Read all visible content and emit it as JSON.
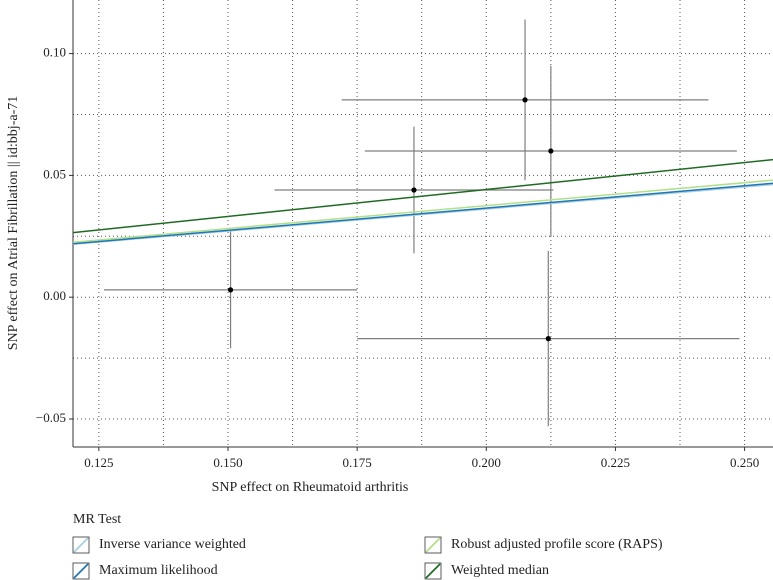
{
  "chart_data": {
    "type": "scatter",
    "x_label": "SNP effect on Rheumatoid arthritis",
    "y_label": "SNP effect on Atrial Fibrillation || id:bbj-a-71",
    "x": [
      0.1505,
      0.186,
      0.2075,
      0.2125,
      0.212
    ],
    "y": [
      0.003,
      0.044,
      0.081,
      0.06,
      -0.017
    ],
    "x_err": [
      0.0245,
      0.027,
      0.0355,
      0.036,
      0.037
    ],
    "y_err": [
      0.024,
      0.026,
      0.033,
      0.035,
      0.036
    ],
    "point_color": "#000000",
    "error_color": "#7f7f7f",
    "xlim": [
      0.12,
      0.2555
    ],
    "ylim": [
      -0.0615,
      0.122
    ],
    "xticks": [
      0.125,
      {
        "value": 0.15,
        "label": "0.150"
      },
      0.175,
      {
        "value": 0.2,
        "label": "0.200"
      },
      0.225,
      {
        "value": 0.25,
        "label": "0.250"
      }
    ],
    "yticks": [
      {
        "value": -0.05,
        "label": "−0.05"
      },
      {
        "value": 0,
        "label": "0.00"
      },
      {
        "value": 0.05,
        "label": "0.05"
      },
      {
        "value": 0.1,
        "label": "0.10"
      }
    ],
    "grid": true,
    "legend_title": "MR Test",
    "legend_position": "bottom",
    "series": [
      {
        "name": "Inverse variance weighted",
        "color": "#a6cee3",
        "slope": 0.181
      },
      {
        "name": "Robust adjusted profile score (RAPS)",
        "color": "#b2df8a",
        "slope": 0.188
      },
      {
        "name": "Maximum likelihood",
        "color": "#1f78b4",
        "slope": 0.183
      },
      {
        "name": "Weighted median",
        "color": "#1e6b22",
        "slope": 0.221
      }
    ]
  }
}
